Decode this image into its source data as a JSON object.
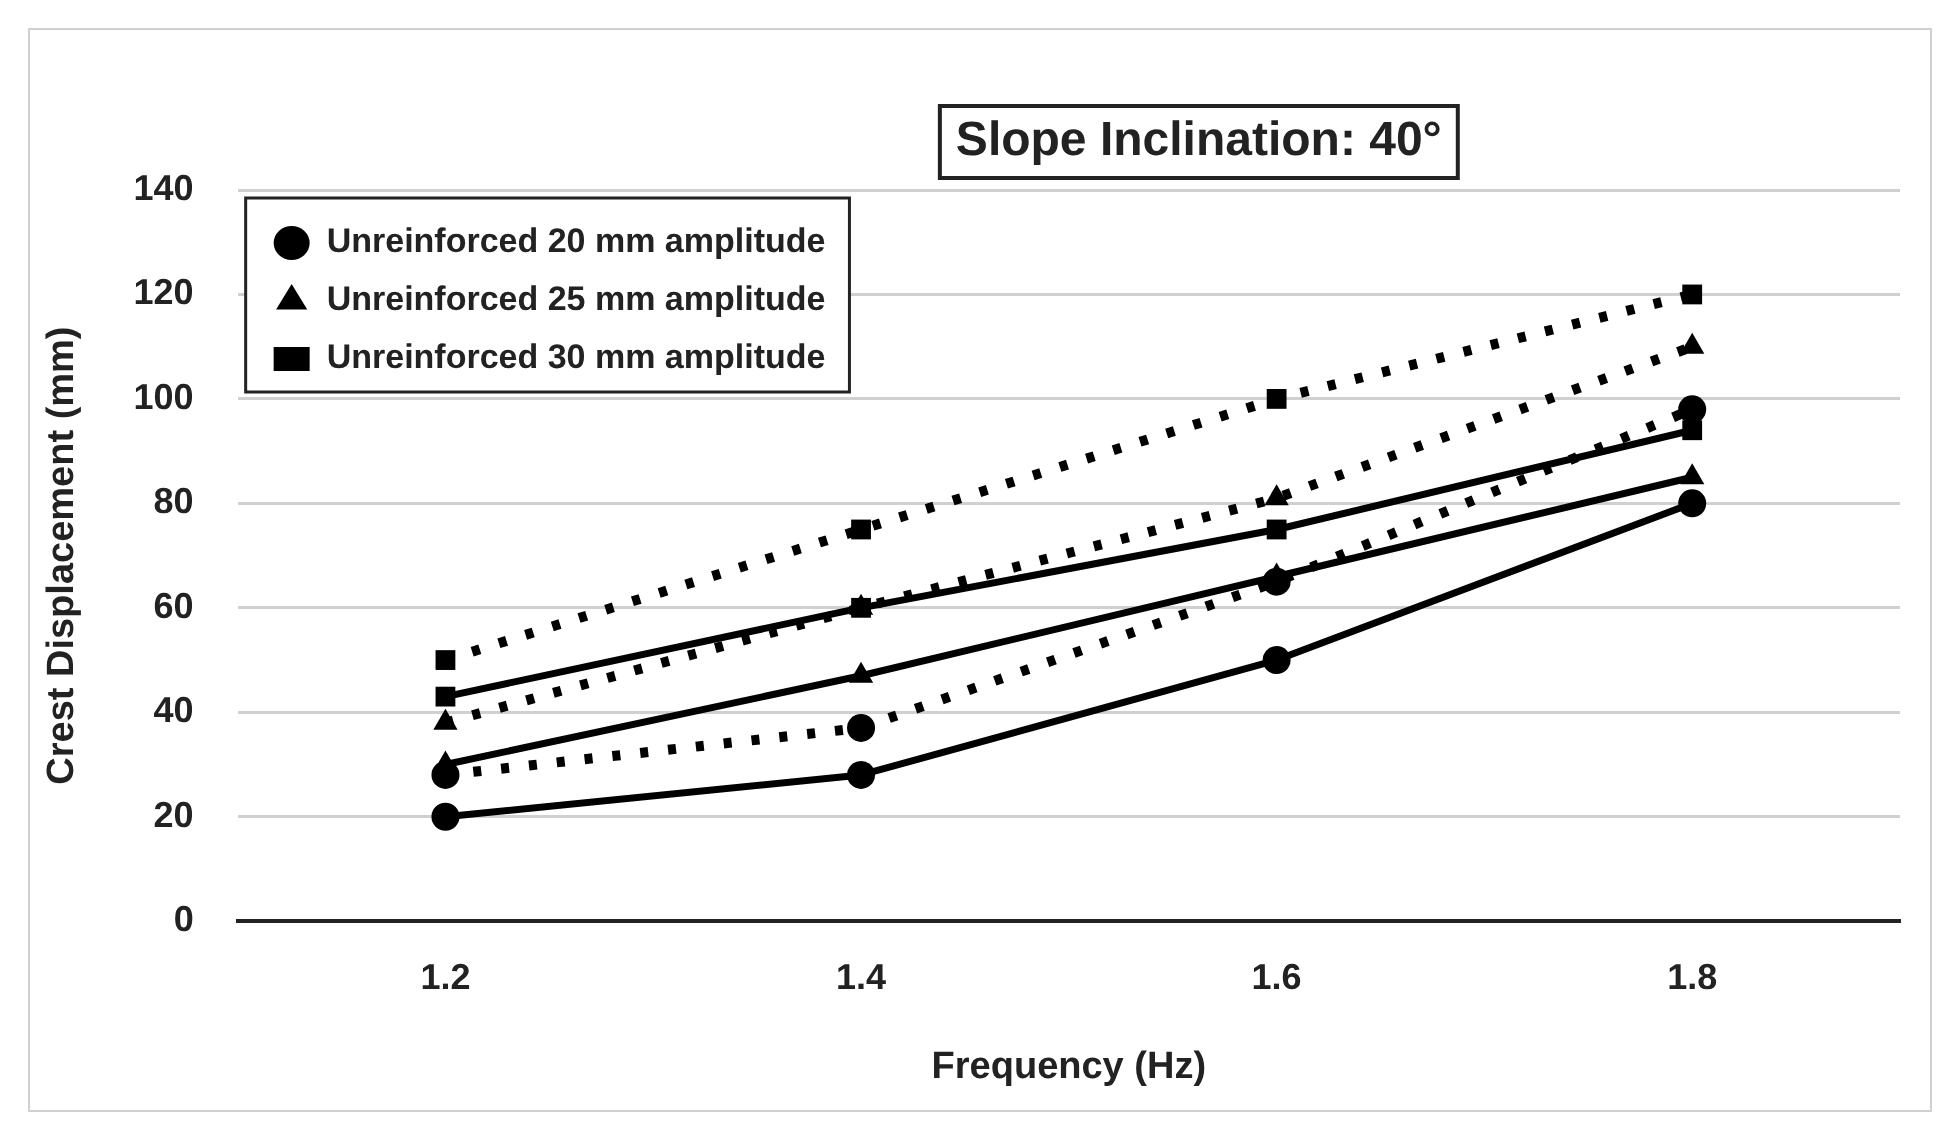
{
  "chart_data": {
    "type": "line",
    "title": "Slope Inclination: 40°",
    "xlabel": "Frequency (Hz)",
    "ylabel": "Crest Displacement (mm)",
    "categories": [
      "1.2",
      "1.4",
      "1.6",
      "1.8"
    ],
    "series": [
      {
        "name": "Unreinforced 20 mm amplitude",
        "color": "#000000",
        "marker": "circle",
        "line_style": "dotted",
        "values": [
          28,
          37,
          65,
          98
        ]
      },
      {
        "name": "Unreinforced 25 mm amplitude",
        "color": "#000000",
        "marker": "triangle",
        "line_style": "dotted",
        "values": [
          38,
          60,
          81,
          110
        ]
      },
      {
        "name": "Unreinforced 30 mm amplitude",
        "color": "#000000",
        "marker": "square",
        "line_style": "dotted",
        "values": [
          50,
          75,
          100,
          120
        ]
      },
      {
        "color": "#000000",
        "marker": "circle",
        "line_style": "solid",
        "values": [
          20,
          28,
          50,
          80
        ]
      },
      {
        "color": "#000000",
        "marker": "triangle",
        "line_style": "solid",
        "values": [
          30,
          47,
          66,
          85
        ]
      },
      {
        "color": "#000000",
        "marker": "square",
        "line_style": "solid",
        "values": [
          43,
          60,
          75,
          94
        ]
      }
    ],
    "ylim": [
      0,
      140
    ],
    "yticks": [
      0,
      20,
      40,
      60,
      80,
      100,
      120,
      140
    ],
    "grid": "y",
    "legend": "top left"
  }
}
